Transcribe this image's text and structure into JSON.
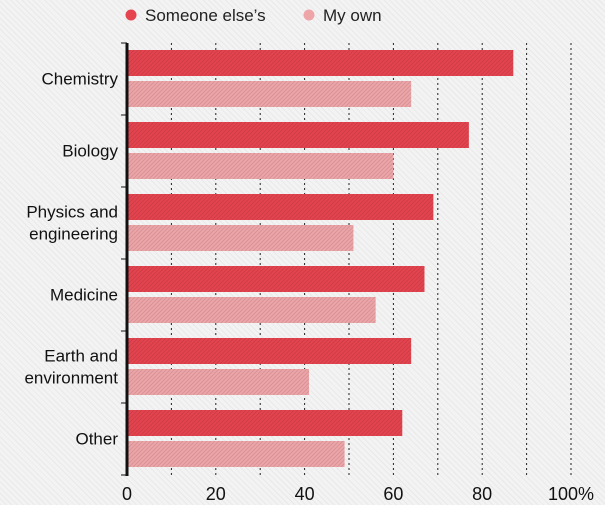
{
  "chart_data": {
    "type": "bar",
    "orientation": "horizontal",
    "title": "",
    "xlabel": "",
    "ylabel": "",
    "categories": [
      [
        "Chemistry"
      ],
      [
        "Biology"
      ],
      [
        "Physics and",
        "engineering"
      ],
      [
        "Medicine"
      ],
      [
        "Earth and",
        "environment"
      ],
      [
        "Other"
      ]
    ],
    "series": [
      {
        "name": "Someone else’s",
        "color": "#e5444f",
        "values": [
          87,
          77,
          69,
          67,
          64,
          62
        ]
      },
      {
        "name": "My own",
        "color": "#eea5a8",
        "values": [
          64,
          60,
          51,
          56,
          41,
          49
        ]
      }
    ],
    "xlim": [
      0,
      100
    ],
    "xticks": [
      "0",
      "20",
      "40",
      "60",
      "80",
      "100%"
    ],
    "xtick_values": [
      0,
      20,
      40,
      60,
      80,
      100
    ],
    "grid": true,
    "legend_position": "top"
  }
}
